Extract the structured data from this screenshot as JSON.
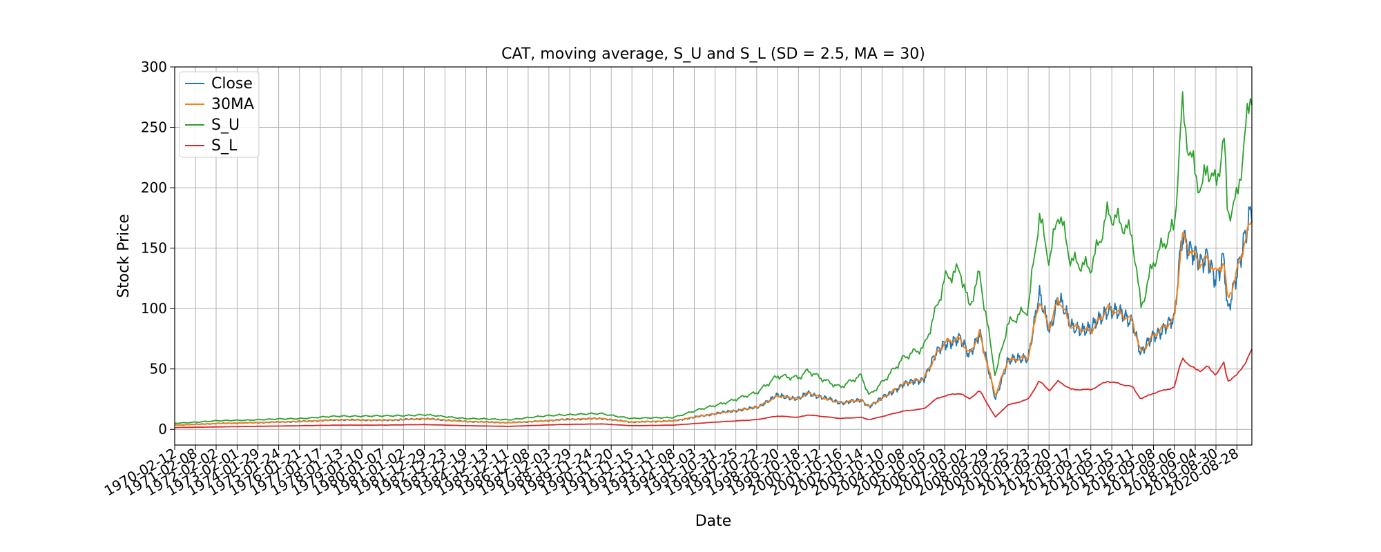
{
  "chart_data": {
    "type": "line",
    "title": "CAT, moving average, S_U and S_L (SD = 2.5, MA = 30)",
    "xlabel": "Date",
    "ylabel": "Stock Price",
    "ylim": [
      -13,
      300
    ],
    "yticks": [
      0,
      50,
      100,
      150,
      200,
      250,
      300
    ],
    "grid": true,
    "legend_position": "top-left",
    "x_tick_labels": [
      "1970-02-12",
      "1971-02-08",
      "1972-02-02",
      "1973-02-01",
      "1974-01-29",
      "1975-01-24",
      "1976-01-21",
      "1977-01-17",
      "1978-01-13",
      "1979-01-10",
      "1980-01-07",
      "1981-01-02",
      "1981-12-29",
      "1982-12-23",
      "1983-12-19",
      "1984-12-13",
      "1985-12-11",
      "1986-12-08",
      "1987-12-03",
      "1988-11-29",
      "1989-11-24",
      "1990-11-20",
      "1991-11-15",
      "1992-11-11",
      "1993-11-08",
      "1994-11-03",
      "1995-10-31",
      "1996-10-25",
      "1997-10-22",
      "1998-10-20",
      "1999-10-18",
      "2000-10-12",
      "2001-10-16",
      "2002-10-14",
      "2003-10-10",
      "2004-10-08",
      "2005-10-05",
      "2006-10-03",
      "2007-10-02",
      "2008-09-29",
      "2009-09-25",
      "2010-09-23",
      "2011-09-20",
      "2012-09-17",
      "2013-09-15",
      "2014-09-15",
      "2015-09-11",
      "2016-09-08",
      "2017-09-06",
      "2018-09-04",
      "2019-08-30",
      "2020-08-28"
    ],
    "x_start": "1970-02-12",
    "x_end": "2021-05-15",
    "keypoints": {
      "x": [
        "1970-02-12",
        "1972-02-02",
        "1974-02-01",
        "1976-01-21",
        "1978-01-13",
        "1980-01-07",
        "1982-01-01",
        "1984-01-01",
        "1986-01-01",
        "1987-10-01",
        "1988-06-01",
        "1990-06-01",
        "1991-11-15",
        "1993-11-08",
        "1995-10-31",
        "1997-10-22",
        "1998-10-20",
        "1999-10-18",
        "2000-04-01",
        "2001-10-16",
        "2002-10-14",
        "2003-03-01",
        "2004-10-08",
        "2005-10-05",
        "2006-05-01",
        "2006-10-03",
        "2007-07-01",
        "2007-12-01",
        "2008-06-01",
        "2009-03-01",
        "2009-09-25",
        "2010-09-23",
        "2011-04-01",
        "2011-10-01",
        "2012-03-01",
        "2012-10-01",
        "2013-09-15",
        "2014-07-01",
        "2015-09-11",
        "2016-02-01",
        "2016-09-08",
        "2017-09-06",
        "2018-01-20",
        "2018-06-01",
        "2018-12-20",
        "2019-04-01",
        "2019-08-30",
        "2020-01-15",
        "2020-03-20",
        "2020-08-28",
        "2021-01-15",
        "2021-05-15"
      ],
      "close": [
        3.5,
        4.8,
        5.6,
        6.5,
        8,
        7.5,
        8.8,
        6.5,
        5.5,
        7,
        8,
        9,
        6,
        7,
        13,
        18,
        28,
        25,
        30,
        22,
        24,
        19,
        37,
        42,
        62,
        72,
        74,
        62,
        80,
        25,
        56,
        60,
        110,
        82,
        110,
        85,
        82,
        100,
        90,
        62,
        78,
        90,
        165,
        150,
        135,
        145,
        125,
        140,
        95,
        132,
        160,
        180
      ],
      "ma30": [
        3.5,
        4.8,
        5.6,
        6.5,
        8,
        7.5,
        8.8,
        6.5,
        5.5,
        7,
        8,
        9,
        6,
        7,
        13,
        18,
        28,
        25,
        30,
        22,
        24,
        19,
        37,
        42,
        62,
        72,
        74,
        62,
        80,
        28,
        56,
        60,
        108,
        84,
        108,
        85,
        82,
        100,
        90,
        64,
        78,
        90,
        160,
        150,
        138,
        142,
        128,
        138,
        105,
        130,
        158,
        175
      ],
      "su": [
        5,
        7,
        8,
        9,
        11,
        11,
        12,
        9,
        8,
        11,
        12,
        13,
        9,
        10,
        20,
        30,
        45,
        42,
        48,
        35,
        44,
        28,
        58,
        68,
        100,
        125,
        130,
        100,
        130,
        45,
        85,
        100,
        180,
        140,
        180,
        138,
        136,
        178,
        160,
        102,
        140,
        165,
        265,
        230,
        200,
        220,
        200,
        238,
        175,
        190,
        245,
        288
      ],
      "sl": [
        1.5,
        2,
        2.5,
        3,
        3.5,
        3.5,
        4,
        3,
        2.5,
        3.5,
        4,
        4.5,
        3,
        3.5,
        6,
        8,
        11,
        10,
        12,
        9,
        10,
        8,
        15,
        17,
        25,
        28,
        30,
        25,
        32,
        10,
        20,
        25,
        40,
        32,
        40,
        33,
        33,
        40,
        35,
        25,
        30,
        35,
        60,
        52,
        48,
        52,
        45,
        55,
        40,
        45,
        55,
        66
      ]
    },
    "series": [
      {
        "name": "Close",
        "key": "close",
        "color": "#1f77b4"
      },
      {
        "name": "30MA",
        "key": "ma30",
        "color": "#ff7f0e"
      },
      {
        "name": "S_U",
        "key": "su",
        "color": "#2ca02c"
      },
      {
        "name": "S_L",
        "key": "sl",
        "color": "#d62728"
      }
    ]
  }
}
